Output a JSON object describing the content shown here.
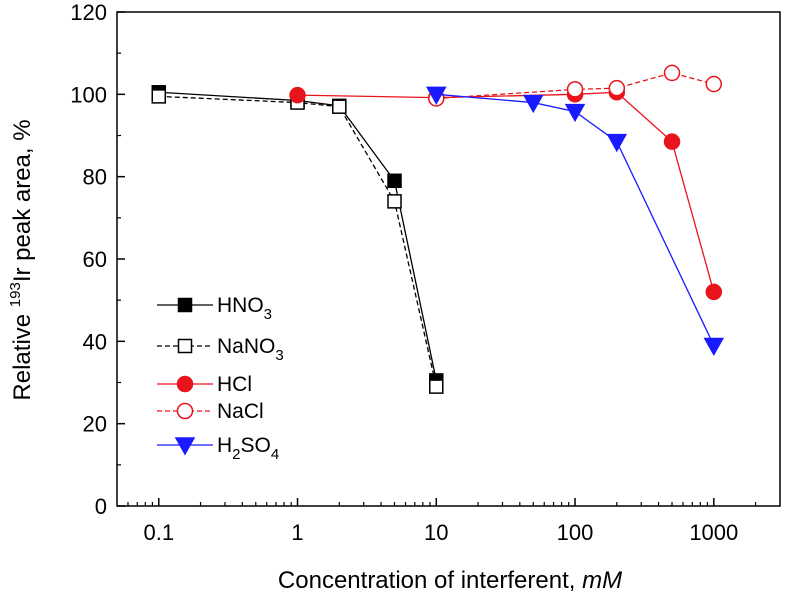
{
  "chart_data": {
    "type": "line",
    "xscale": "log",
    "xlim": [
      0.05,
      3000
    ],
    "ylim": [
      0,
      120
    ],
    "xticks": [
      0.1,
      1,
      10,
      100,
      1000
    ],
    "xtick_labels": [
      "0.1",
      "1",
      "10",
      "100",
      "1000"
    ],
    "yticks": [
      0,
      20,
      40,
      60,
      80,
      100,
      120
    ],
    "ytick_labels": [
      "0",
      "20",
      "40",
      "60",
      "80",
      "100",
      "120"
    ],
    "xlabel": {
      "prefix": "Concentration of interferent, ",
      "unit": "mM"
    },
    "ylabel": {
      "prefix": "Relative ",
      "sup": "193",
      "suffix": "Ir peak area, %"
    },
    "grid": false,
    "legend_position": "left-center",
    "series": [
      {
        "name": "HNO3",
        "label_parts": [
          [
            "HNO",
            ""
          ],
          [
            "3",
            "sub"
          ]
        ],
        "color": "#000000",
        "dash": "solid",
        "marker": "square",
        "filled": true,
        "x": [
          0.1,
          1,
          2,
          5,
          10
        ],
        "y": [
          100.5,
          98.5,
          97.2,
          79,
          30.5
        ]
      },
      {
        "name": "NaNO3",
        "label_parts": [
          [
            "NaNO",
            ""
          ],
          [
            "3",
            "sub"
          ]
        ],
        "color": "#000000",
        "dash": "dashed",
        "marker": "square",
        "filled": false,
        "x": [
          0.1,
          1,
          2,
          5,
          10
        ],
        "y": [
          99.5,
          98,
          97,
          74,
          29
        ]
      },
      {
        "name": "HCl",
        "label_parts": [
          [
            "HCl",
            ""
          ]
        ],
        "color": "#e8141b",
        "dash": "solid",
        "marker": "circle",
        "filled": true,
        "x": [
          1,
          10,
          100,
          200,
          500,
          1000
        ],
        "y": [
          99.8,
          99.2,
          100,
          100.5,
          88.5,
          52
        ]
      },
      {
        "name": "NaCl",
        "label_parts": [
          [
            "NaCl",
            ""
          ]
        ],
        "color": "#e8141b",
        "dash": "dashed",
        "marker": "circle",
        "filled": false,
        "x": [
          10,
          100,
          200,
          500,
          1000
        ],
        "y": [
          99,
          101.2,
          101.5,
          105.2,
          102.5
        ]
      },
      {
        "name": "H2SO4",
        "label_parts": [
          [
            "H",
            ""
          ],
          [
            "2",
            "sub"
          ],
          [
            "SO",
            ""
          ],
          [
            "4",
            "sub"
          ]
        ],
        "color": "#1a1aff",
        "dash": "solid",
        "marker": "triangle-down",
        "filled": true,
        "x": [
          10,
          50,
          100,
          200,
          1000
        ],
        "y": [
          100,
          98,
          95.8,
          88.5,
          39
        ]
      }
    ]
  }
}
